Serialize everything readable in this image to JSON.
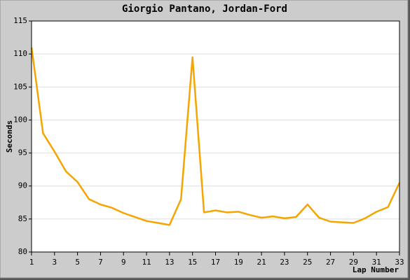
{
  "chart_data": {
    "type": "line",
    "title": "Giorgio Pantano, Jordan-Ford",
    "x_label": "Lap Number",
    "y_label": "Seconds",
    "x": [
      1,
      2,
      3,
      4,
      5,
      6,
      7,
      8,
      9,
      10,
      11,
      12,
      13,
      14,
      15,
      16,
      17,
      18,
      19,
      20,
      21,
      22,
      23,
      24,
      25,
      26,
      27,
      28,
      29,
      30,
      31,
      32,
      33
    ],
    "values": [
      111,
      98,
      95.2,
      92.2,
      90.6,
      88,
      87.2,
      86.7,
      85.9,
      85.3,
      84.7,
      84.4,
      84.1,
      88,
      109.5,
      86,
      86.3,
      86,
      86.1,
      85.6,
      85.2,
      85.4,
      85.1,
      85.3,
      87.2,
      85.2,
      84.6,
      84.5,
      84.4,
      85.1,
      86.1,
      86.8,
      90.5
    ],
    "color": "#f5a500",
    "xlim": [
      1,
      33
    ],
    "xticks": [
      1,
      3,
      5,
      7,
      9,
      11,
      13,
      15,
      17,
      19,
      21,
      23,
      25,
      27,
      29,
      31,
      33
    ],
    "ylim": [
      80,
      115
    ],
    "yticks": [
      80,
      85,
      90,
      95,
      100,
      105,
      110,
      115
    ],
    "grid": true
  }
}
